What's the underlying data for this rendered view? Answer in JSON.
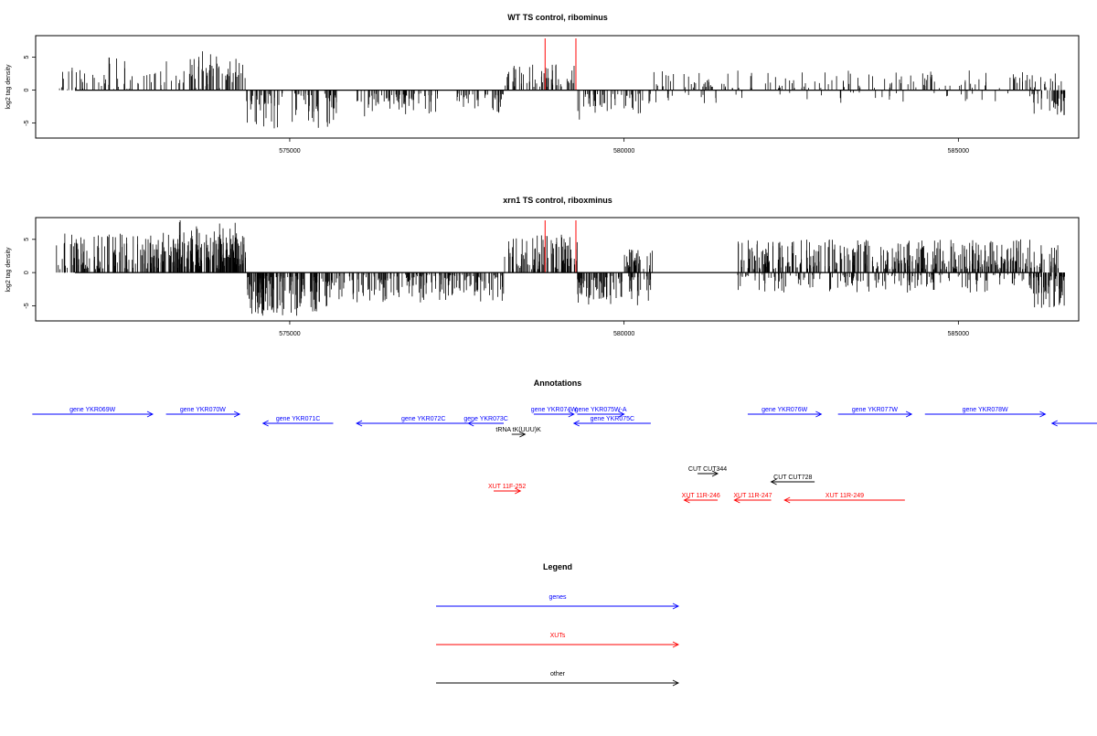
{
  "chart_data": [
    {
      "type": "bar",
      "title": "WT TS control, ribominus",
      "ylabel": "log2 tag density",
      "xlim": [
        571200,
        586800
      ],
      "ylim": [
        -7,
        8
      ],
      "yticks": [
        -5,
        0,
        5
      ],
      "xticks": [
        575000,
        580000,
        585000
      ],
      "grid": false,
      "highlight_color": "#ff3030",
      "highlights": [
        {
          "x": 578820,
          "y": 8
        },
        {
          "x": 579280,
          "y": 8
        }
      ],
      "regions": [
        {
          "x": [
            571500,
            574350
          ],
          "y": [
            0,
            5
          ],
          "sign": 1,
          "n": 95,
          "seed": 11
        },
        {
          "x": [
            573500,
            574300
          ],
          "y": [
            2,
            6.2
          ],
          "sign": 1,
          "n": 30,
          "seed": 12
        },
        {
          "x": [
            574350,
            575700
          ],
          "y": [
            0.5,
            6
          ],
          "sign": -1,
          "n": 80,
          "seed": 13
        },
        {
          "x": [
            576000,
            577300
          ],
          "y": [
            0.5,
            4
          ],
          "sign": -1,
          "n": 70,
          "seed": 14
        },
        {
          "x": [
            577500,
            578200
          ],
          "y": [
            0.5,
            3.5
          ],
          "sign": -1,
          "n": 40,
          "seed": 15
        },
        {
          "x": [
            578200,
            579300
          ],
          "y": [
            0.5,
            4
          ],
          "sign": 1,
          "n": 55,
          "seed": 16
        },
        {
          "x": [
            579300,
            580400
          ],
          "y": [
            0.5,
            4.5
          ],
          "sign": -1,
          "n": 50,
          "seed": 17
        },
        {
          "x": [
            580400,
            586600
          ],
          "y": [
            0.3,
            3
          ],
          "sign": 1,
          "n": 150,
          "seed": 18
        },
        {
          "x": [
            580400,
            586000
          ],
          "y": [
            0.3,
            2
          ],
          "sign": -1,
          "n": 40,
          "seed": 19
        },
        {
          "x": [
            586050,
            586600
          ],
          "y": [
            0.5,
            4
          ],
          "sign": -1,
          "n": 35,
          "seed": 20
        }
      ]
    },
    {
      "type": "bar",
      "title": "xrn1 TS control, riboxminus",
      "ylabel": "log2 tag density",
      "xlim": [
        571200,
        586800
      ],
      "ylim": [
        -7,
        8
      ],
      "yticks": [
        -5,
        0,
        5
      ],
      "xticks": [
        575000,
        580000,
        585000
      ],
      "grid": false,
      "highlight_color": "#ff3030",
      "highlights": [
        {
          "x": 578820,
          "y": 8
        },
        {
          "x": 579280,
          "y": 8
        }
      ],
      "regions": [
        {
          "x": [
            571500,
            574350
          ],
          "y": [
            0.5,
            6
          ],
          "sign": 1,
          "n": 240,
          "seed": 31
        },
        {
          "x": [
            573200,
            574300
          ],
          "y": [
            2,
            8
          ],
          "sign": 1,
          "n": 80,
          "seed": 32
        },
        {
          "x": [
            574350,
            575700
          ],
          "y": [
            0.5,
            6.5
          ],
          "sign": -1,
          "n": 160,
          "seed": 33
        },
        {
          "x": [
            575700,
            578200
          ],
          "y": [
            0.3,
            4.5
          ],
          "sign": -1,
          "n": 180,
          "seed": 34
        },
        {
          "x": [
            578200,
            579300
          ],
          "y": [
            0.5,
            6
          ],
          "sign": 1,
          "n": 90,
          "seed": 35
        },
        {
          "x": [
            579300,
            580400
          ],
          "y": [
            0.5,
            5
          ],
          "sign": -1,
          "n": 90,
          "seed": 36
        },
        {
          "x": [
            580000,
            580500
          ],
          "y": [
            0.5,
            3.5
          ],
          "sign": 1,
          "n": 35,
          "seed": 37
        },
        {
          "x": [
            581700,
            586500
          ],
          "y": [
            0.5,
            5
          ],
          "sign": 1,
          "n": 380,
          "seed": 38
        },
        {
          "x": [
            581700,
            586000
          ],
          "y": [
            0.3,
            3
          ],
          "sign": -1,
          "n": 150,
          "seed": 39
        },
        {
          "x": [
            586050,
            586600
          ],
          "y": [
            0.5,
            5.5
          ],
          "sign": -1,
          "n": 60,
          "seed": 40
        }
      ]
    }
  ],
  "annotations": {
    "title": "Annotations",
    "xlim": [
      571200,
      586800
    ],
    "colors": {
      "genes": "#0000ff",
      "xuts": "#ff0000",
      "other": "#000000"
    },
    "features": [
      {
        "label": "gene YKR069W",
        "category": "genes",
        "start": 571150,
        "end": 572950,
        "strand": "+",
        "row": 0
      },
      {
        "label": "gene YKR070W",
        "category": "genes",
        "start": 573150,
        "end": 574250,
        "strand": "+",
        "row": 0
      },
      {
        "label": "gene YKR071C",
        "category": "genes",
        "start": 574600,
        "end": 575650,
        "strand": "-",
        "row": 1
      },
      {
        "label": "gene YKR072C",
        "category": "genes",
        "start": 576000,
        "end": 578000,
        "strand": "-",
        "row": 1
      },
      {
        "label": "gene YKR073C",
        "category": "genes",
        "start": 577670,
        "end": 578200,
        "strand": "-",
        "row": 1
      },
      {
        "label": "tRNA tK(UUU)K",
        "category": "other",
        "start": 578320,
        "end": 578520,
        "strand": "+",
        "row": 2
      },
      {
        "label": "gene YKR074W",
        "category": "genes",
        "start": 578650,
        "end": 579250,
        "strand": "+",
        "row": 0
      },
      {
        "label": "gene YKR075W-A",
        "category": "genes",
        "start": 579300,
        "end": 580000,
        "strand": "+",
        "row": 0
      },
      {
        "label": "gene YKR075C",
        "category": "genes",
        "start": 579250,
        "end": 580400,
        "strand": "-",
        "row": 1
      },
      {
        "label": "gene YKR076W",
        "category": "genes",
        "start": 581850,
        "end": 582950,
        "strand": "+",
        "row": 0
      },
      {
        "label": "gene YKR077W",
        "category": "genes",
        "start": 583200,
        "end": 584300,
        "strand": "+",
        "row": 0
      },
      {
        "label": "gene YKR078W",
        "category": "genes",
        "start": 584500,
        "end": 586300,
        "strand": "+",
        "row": 0
      },
      {
        "label": "",
        "category": "genes",
        "start": 586400,
        "end": 587150,
        "strand": "-",
        "row": 1
      },
      {
        "label": "CUT CUT344",
        "category": "other",
        "start": 581100,
        "end": 581400,
        "strand": "+",
        "row": 4
      },
      {
        "label": "CUT CUT728",
        "category": "other",
        "start": 582200,
        "end": 582850,
        "strand": "-",
        "row": 5
      },
      {
        "label": "XUT 11F-252",
        "category": "xuts",
        "start": 578050,
        "end": 578450,
        "strand": "+",
        "row": 6
      },
      {
        "label": "XUT 11R-246",
        "category": "xuts",
        "start": 580900,
        "end": 581400,
        "strand": "-",
        "row": 7
      },
      {
        "label": "XUT 11R-247",
        "category": "xuts",
        "start": 581650,
        "end": 582200,
        "strand": "-",
        "row": 7
      },
      {
        "label": "XUT 11R-249",
        "category": "xuts",
        "start": 582400,
        "end": 584200,
        "strand": "-",
        "row": 7
      }
    ]
  },
  "legend": {
    "title": "Legend",
    "items": [
      {
        "label": "genes",
        "category": "genes"
      },
      {
        "label": "XUTs",
        "category": "xuts"
      },
      {
        "label": "other",
        "category": "other"
      }
    ]
  }
}
